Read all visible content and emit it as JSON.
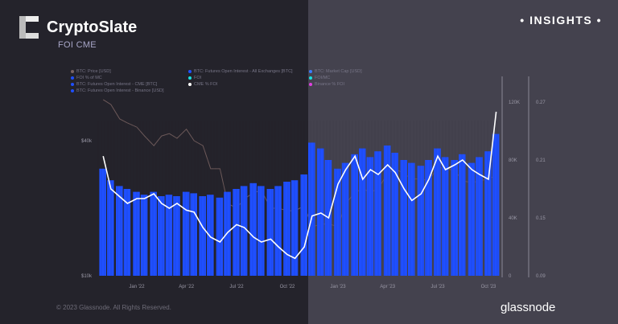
{
  "brand": {
    "name": "CryptoSlate",
    "subtitle": "FOI CME",
    "badge": "• INSIGHTS •"
  },
  "footer": {
    "copyright": "© 2023 Glassnode. All Rights Reserved.",
    "logo": "glassnode"
  },
  "colors": {
    "bars": "#1f4fff",
    "cme_line": "#ffffff",
    "price_line": "#6e5a5a",
    "background": "#24232b",
    "shade": "#44424e"
  },
  "chart_data": {
    "type": "bar",
    "title": "",
    "legend": [
      {
        "label": "BTC: Price [USD]",
        "color": "#7a6464"
      },
      {
        "label": "FOI % of MC",
        "color": "#1f4fff"
      },
      {
        "label": "BTC: Futures Open Interest - CME [BTC]",
        "color": "#1f4fff"
      },
      {
        "label": "BTC: Futures Open Interest - Binance [USD]",
        "color": "#1f4fff"
      },
      {
        "label": "BTC: Futures Open Interest - All Exchanges [BTC]",
        "color": "#1f4fff"
      },
      {
        "label": "FOI",
        "color": "#19e0e0"
      },
      {
        "label": "CME % FOI",
        "color": "#ffffff"
      },
      {
        "label": "BTC: Market Cap [USD]",
        "color": "#3a7bff"
      },
      {
        "label": "FOI/MC",
        "color": "#19e0e0"
      },
      {
        "label": "Binance % FOI",
        "color": "#e040e0"
      }
    ],
    "x_ticks": [
      "Jan '22",
      "Apr '22",
      "Jul '22",
      "Oct '22",
      "Jan '23",
      "Apr '23",
      "Jul '23",
      "Oct '23"
    ],
    "x_tick_dates": [
      "2022-01-01",
      "2022-04-01",
      "2022-07-01",
      "2022-10-01",
      "2023-01-01",
      "2023-04-01",
      "2023-07-01",
      "2023-10-01"
    ],
    "left_axis": {
      "scale": "log",
      "ticks": [
        "$10k",
        "$40k"
      ],
      "tick_values": [
        10000,
        40000
      ]
    },
    "right_axis_1": {
      "ticks": [
        "0",
        "40K",
        "80K",
        "120K"
      ],
      "tick_values": [
        0,
        40000,
        80000,
        120000
      ],
      "range": [
        0,
        120000
      ]
    },
    "right_axis_2": {
      "ticks": [
        "0.09",
        "0.15",
        "0.21",
        "0.27"
      ],
      "tick_values": [
        0.09,
        0.15,
        0.21,
        0.27
      ],
      "range": [
        0.09,
        0.27
      ]
    },
    "x": [
      "2021-11-01",
      "2021-11-15",
      "2021-12-01",
      "2021-12-15",
      "2022-01-01",
      "2022-01-15",
      "2022-02-01",
      "2022-02-15",
      "2022-03-01",
      "2022-03-15",
      "2022-04-01",
      "2022-04-15",
      "2022-05-01",
      "2022-05-15",
      "2022-06-01",
      "2022-06-15",
      "2022-07-01",
      "2022-07-15",
      "2022-08-01",
      "2022-08-15",
      "2022-09-01",
      "2022-09-15",
      "2022-10-01",
      "2022-10-15",
      "2022-11-01",
      "2022-11-15",
      "2022-12-01",
      "2022-12-15",
      "2023-01-01",
      "2023-01-15",
      "2023-02-01",
      "2023-02-15",
      "2023-03-01",
      "2023-03-15",
      "2023-04-01",
      "2023-04-15",
      "2023-05-01",
      "2023-05-15",
      "2023-06-01",
      "2023-06-15",
      "2023-07-01",
      "2023-07-15",
      "2023-08-01",
      "2023-08-15",
      "2023-09-01",
      "2023-09-15",
      "2023-10-01",
      "2023-10-15"
    ],
    "series": [
      {
        "name": "BTC: Futures Open Interest - CME [BTC]",
        "axis": "right_axis_1",
        "type": "bar",
        "values": [
          74000,
          66000,
          62000,
          60000,
          58000,
          56000,
          58000,
          55000,
          56000,
          55000,
          58000,
          57000,
          55000,
          56000,
          54000,
          58000,
          60000,
          62000,
          64000,
          62000,
          60000,
          62000,
          65000,
          66000,
          70000,
          92000,
          88000,
          80000,
          74000,
          78000,
          84000,
          88000,
          82000,
          86000,
          90000,
          85000,
          80000,
          78000,
          76000,
          80000,
          88000,
          82000,
          80000,
          84000,
          78000,
          82000,
          86000,
          98000
        ]
      },
      {
        "name": "CME % FOI",
        "axis": "right_axis_2",
        "type": "line",
        "values": [
          0.214,
          0.18,
          0.172,
          0.165,
          0.17,
          0.17,
          0.175,
          0.165,
          0.16,
          0.165,
          0.158,
          0.156,
          0.14,
          0.13,
          0.125,
          0.135,
          0.143,
          0.14,
          0.13,
          0.125,
          0.128,
          0.12,
          0.112,
          0.108,
          0.12,
          0.152,
          0.155,
          0.15,
          0.185,
          0.2,
          0.214,
          0.19,
          0.2,
          0.195,
          0.205,
          0.197,
          0.18,
          0.168,
          0.175,
          0.19,
          0.214,
          0.2,
          0.205,
          0.21,
          0.2,
          0.195,
          0.19,
          0.26
        ]
      },
      {
        "name": "BTC: Price [USD]",
        "axis": "left_axis",
        "type": "line",
        "values": [
          61000,
          58000,
          50000,
          48000,
          46000,
          42000,
          38000,
          42000,
          43000,
          41000,
          45000,
          40000,
          38000,
          30000,
          30000,
          21000,
          20000,
          22000,
          23500,
          24000,
          20000,
          20000,
          19500,
          19500,
          20500,
          16500,
          17000,
          17000,
          16600,
          21000,
          23500,
          24500,
          23500,
          24500,
          28500,
          30000,
          28500,
          27000,
          27000,
          26500,
          30500,
          30000,
          29500,
          26500,
          26000,
          26500,
          27000,
          28000
        ]
      }
    ]
  }
}
